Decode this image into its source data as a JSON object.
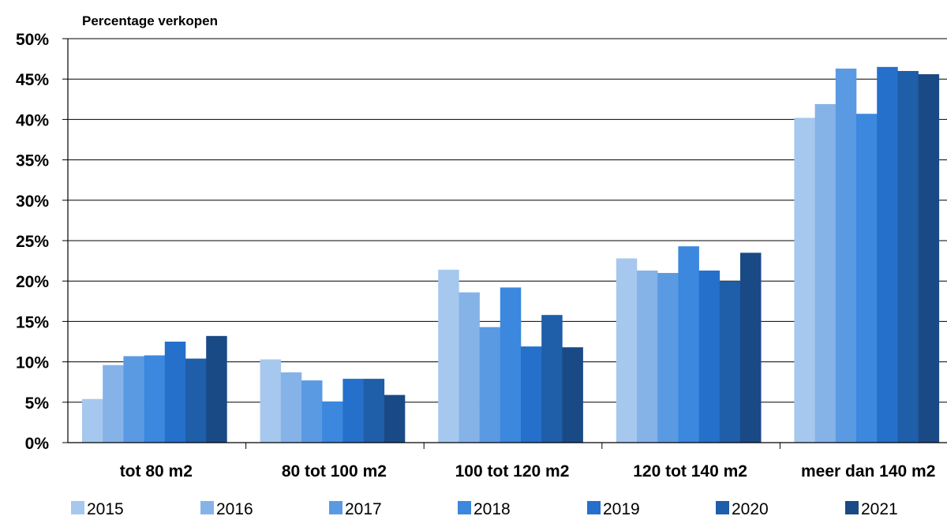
{
  "chart_data": {
    "type": "bar",
    "title": "",
    "ylabel": "Percentage verkopen",
    "xlabel": "",
    "categories": [
      "tot 80 m2",
      "80 tot 100 m2",
      "100 tot 120 m2",
      "120 tot 140 m2",
      "meer dan 140 m2"
    ],
    "ylim": [
      0,
      50
    ],
    "yticks": [
      0,
      5,
      10,
      15,
      20,
      25,
      30,
      35,
      40,
      45,
      50
    ],
    "ytick_labels": [
      "0%",
      "5%",
      "10%",
      "15%",
      "20%",
      "25%",
      "30%",
      "35%",
      "40%",
      "45%",
      "50%"
    ],
    "grid": true,
    "legend_position": "bottom",
    "series": [
      {
        "name": "2015",
        "color": "#a6c8ee",
        "values": [
          5.4,
          10.3,
          21.4,
          22.8,
          40.2
        ]
      },
      {
        "name": "2016",
        "color": "#85b3e8",
        "values": [
          9.6,
          8.7,
          18.6,
          21.3,
          41.9
        ]
      },
      {
        "name": "2017",
        "color": "#5a9ae2",
        "values": [
          10.7,
          7.7,
          14.3,
          21.0,
          46.3
        ]
      },
      {
        "name": "2018",
        "color": "#3b88de",
        "values": [
          10.8,
          5.1,
          19.2,
          24.3,
          40.7
        ]
      },
      {
        "name": "2019",
        "color": "#2570cb",
        "values": [
          12.5,
          7.9,
          11.9,
          21.3,
          46.5
        ]
      },
      {
        "name": "2020",
        "color": "#1f5ea8",
        "values": [
          10.4,
          7.9,
          15.8,
          20.0,
          46.0
        ]
      },
      {
        "name": "2021",
        "color": "#1a4a86",
        "values": [
          13.2,
          5.9,
          11.8,
          23.5,
          45.6
        ]
      }
    ]
  }
}
